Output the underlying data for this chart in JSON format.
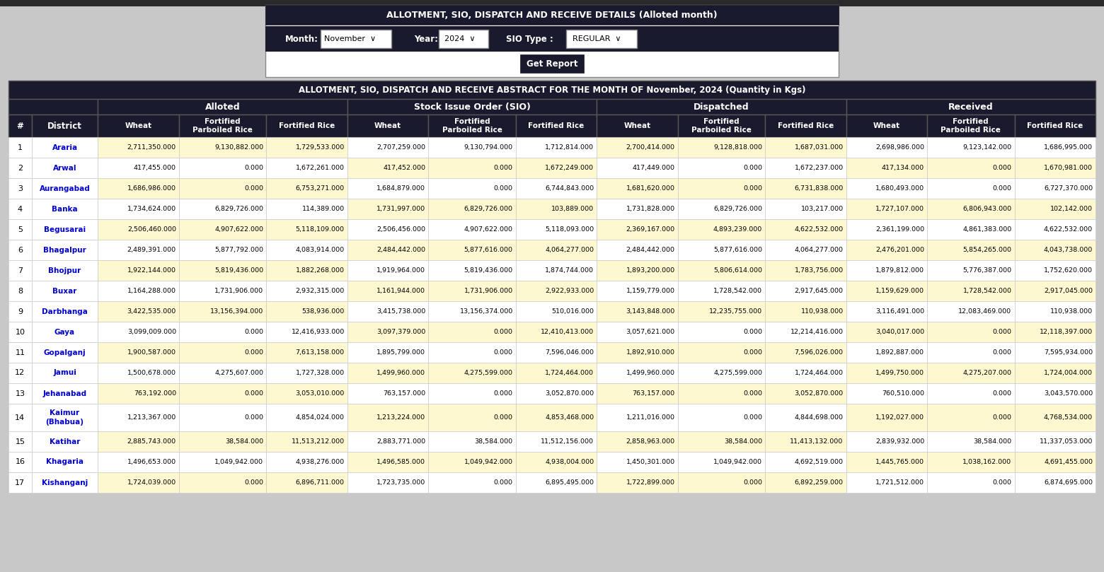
{
  "title": "ALLOTMENT, SIO, DISPATCH AND RECEIVE ABSTRACT FOR THE MONTH OF November, 2024 (Quantity in Kgs)",
  "form_title": "ALLOTMENT, SIO, DISPATCH AND RECEIVE DETAILS (Alloted month)",
  "form_month": "November",
  "form_year": "2024",
  "form_sio": "REGULAR",
  "form_btn": "Get Report",
  "page_bg": "#c8c8c8",
  "form_bg": "#1a1a2e",
  "form_panel_bg": "#e8e8e8",
  "header_bg": "#1a1a2e",
  "header_text": "#ffffff",
  "col_groups": [
    "Alloted",
    "Stock Issue Order (SIO)",
    "Dispatched",
    "Received"
  ],
  "sub_cols": [
    "Wheat",
    "Fortified\nParboiled Rice",
    "Fortified Rice"
  ],
  "alt_row_bg1": "#fdf8d0",
  "alt_row_bg2": "#ffffff",
  "link_color": "#0000cc",
  "rows": [
    {
      "num": 1,
      "district": "Araria",
      "data": [
        2711350.0,
        9130882.0,
        1729533.0,
        2707259.0,
        9130794.0,
        1712814.0,
        2700414.0,
        9128818.0,
        1687031.0,
        2698986.0,
        9123142.0,
        1686995.0
      ]
    },
    {
      "num": 2,
      "district": "Arwal",
      "data": [
        417455.0,
        0.0,
        1672261.0,
        417452.0,
        0.0,
        1672249.0,
        417449.0,
        0.0,
        1672237.0,
        417134.0,
        0.0,
        1670981.0
      ]
    },
    {
      "num": 3,
      "district": "Aurangabad",
      "data": [
        1686986.0,
        0.0,
        6753271.0,
        1684879.0,
        0.0,
        6744843.0,
        1681620.0,
        0.0,
        6731838.0,
        1680493.0,
        0.0,
        6727370.0
      ]
    },
    {
      "num": 4,
      "district": "Banka",
      "data": [
        1734624.0,
        6829726.0,
        114389.0,
        1731997.0,
        6829726.0,
        103889.0,
        1731828.0,
        6829726.0,
        103217.0,
        1727107.0,
        6806943.0,
        102142.0
      ]
    },
    {
      "num": 5,
      "district": "Begusarai",
      "data": [
        2506460.0,
        4907622.0,
        5118109.0,
        2506456.0,
        4907622.0,
        5118093.0,
        2369167.0,
        4893239.0,
        4622532.0,
        2361199.0,
        4861383.0,
        4622532.0
      ]
    },
    {
      "num": 6,
      "district": "Bhagalpur",
      "data": [
        2489391.0,
        5877792.0,
        4083914.0,
        2484442.0,
        5877616.0,
        4064277.0,
        2484442.0,
        5877616.0,
        4064277.0,
        2476201.0,
        5854265.0,
        4043738.0
      ]
    },
    {
      "num": 7,
      "district": "Bhojpur",
      "data": [
        1922144.0,
        5819436.0,
        1882268.0,
        1919964.0,
        5819436.0,
        1874744.0,
        1893200.0,
        5806614.0,
        1783756.0,
        1879812.0,
        5776387.0,
        1752620.0
      ]
    },
    {
      "num": 8,
      "district": "Buxar",
      "data": [
        1164288.0,
        1731906.0,
        2932315.0,
        1161944.0,
        1731906.0,
        2922933.0,
        1159779.0,
        1728542.0,
        2917645.0,
        1159629.0,
        1728542.0,
        2917045.0
      ]
    },
    {
      "num": 9,
      "district": "Darbhanga",
      "data": [
        3422535.0,
        13156394.0,
        538936.0,
        3415738.0,
        13156374.0,
        510016.0,
        3143848.0,
        12235755.0,
        110938.0,
        3116491.0,
        12083469.0,
        110938.0
      ]
    },
    {
      "num": 10,
      "district": "Gaya",
      "data": [
        3099009.0,
        0.0,
        12416933.0,
        3097379.0,
        0.0,
        12410413.0,
        3057621.0,
        0.0,
        12214416.0,
        3040017.0,
        0.0,
        12118397.0
      ]
    },
    {
      "num": 11,
      "district": "Gopalganj",
      "data": [
        1900587.0,
        0.0,
        7613158.0,
        1895799.0,
        0.0,
        7596046.0,
        1892910.0,
        0.0,
        7596026.0,
        1892887.0,
        0.0,
        7595934.0
      ]
    },
    {
      "num": 12,
      "district": "Jamui",
      "data": [
        1500678.0,
        4275607.0,
        1727328.0,
        1499960.0,
        4275599.0,
        1724464.0,
        1499960.0,
        4275599.0,
        1724464.0,
        1499750.0,
        4275207.0,
        1724004.0
      ]
    },
    {
      "num": 13,
      "district": "Jehanabad",
      "data": [
        763192.0,
        0.0,
        3053010.0,
        763157.0,
        0.0,
        3052870.0,
        763157.0,
        0.0,
        3052870.0,
        760510.0,
        0.0,
        3043570.0
      ]
    },
    {
      "num": 14,
      "district": "Kaimur\n(Bhabua)",
      "data": [
        1213367.0,
        0.0,
        4854024.0,
        1213224.0,
        0.0,
        4853468.0,
        1211016.0,
        0.0,
        4844698.0,
        1192027.0,
        0.0,
        4768534.0
      ]
    },
    {
      "num": 15,
      "district": "Katihar",
      "data": [
        2885743.0,
        38584.0,
        11513212.0,
        2883771.0,
        38584.0,
        11512156.0,
        2858963.0,
        38584.0,
        11413132.0,
        2839932.0,
        38584.0,
        11337053.0
      ]
    },
    {
      "num": 16,
      "district": "Khagaria",
      "data": [
        1496653.0,
        1049942.0,
        4938276.0,
        1496585.0,
        1049942.0,
        4938004.0,
        1450301.0,
        1049942.0,
        4692519.0,
        1445765.0,
        1038162.0,
        4691455.0
      ]
    },
    {
      "num": 17,
      "district": "Kishanganj",
      "data": [
        1724039.0,
        0.0,
        6896711.0,
        1723735.0,
        0.0,
        6895495.0,
        1722899.0,
        0.0,
        6892259.0,
        1721512.0,
        0.0,
        6874695.0
      ]
    }
  ]
}
